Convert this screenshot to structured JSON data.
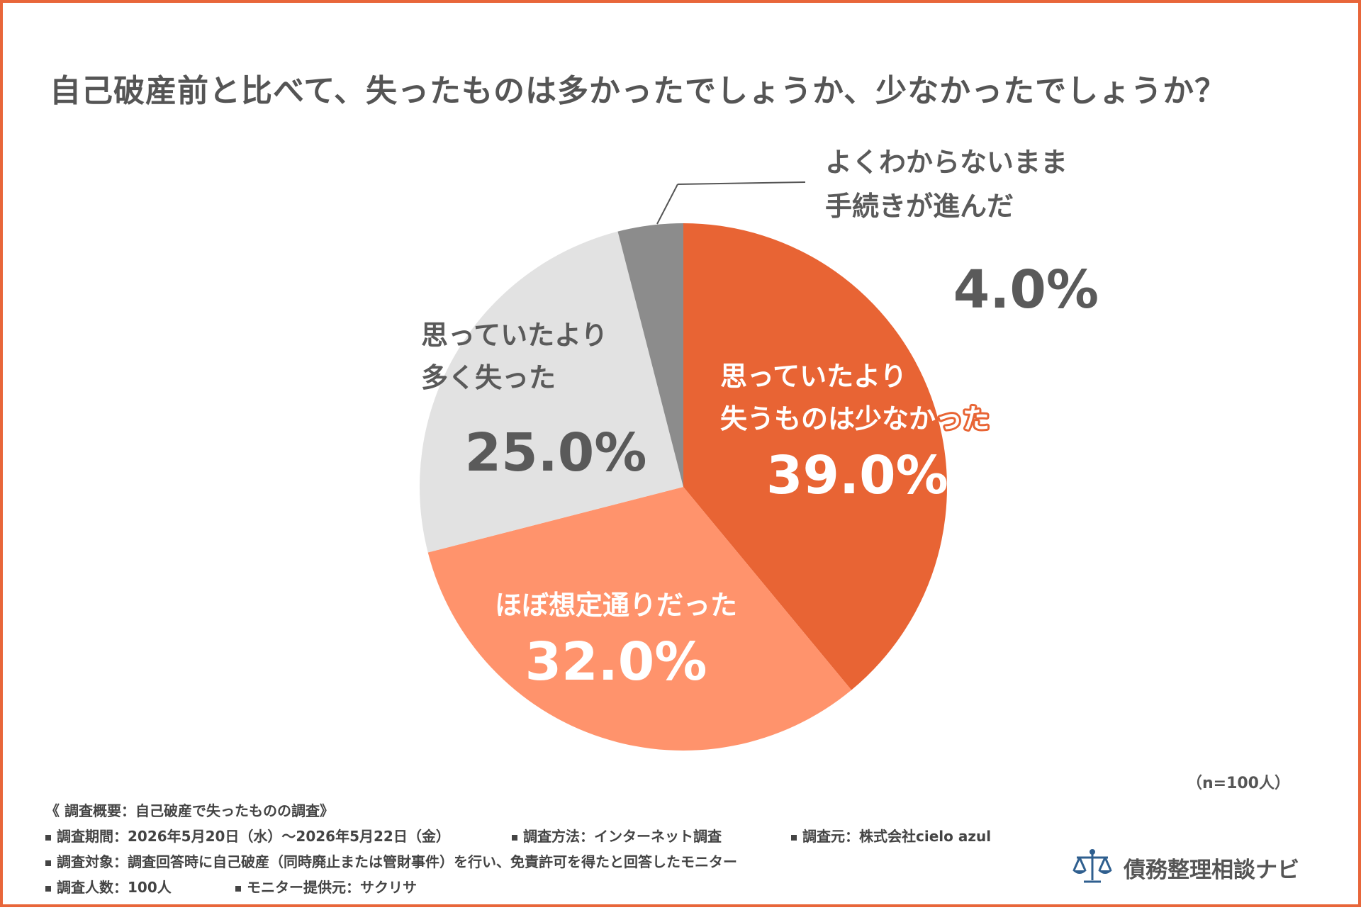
{
  "chart_data": {
    "type": "pie",
    "title": "自己破産前と比べて、失ったものは多かったでしょうか、少なかったでしょうか？",
    "slices": [
      {
        "label_lines": [
          "思っていたより",
          "失うものは少なかった"
        ],
        "value": 39.0,
        "value_label": "39.0%",
        "color": "#e86434",
        "text_color": "#ffffff"
      },
      {
        "label_lines": [
          "ほぼ想定通りだった"
        ],
        "value": 32.0,
        "value_label": "32.0%",
        "color": "#ff936c",
        "text_color": "#ffffff"
      },
      {
        "label_lines": [
          "思っていたより",
          "多く失った"
        ],
        "value": 25.0,
        "value_label": "25.0%",
        "color": "#e2e2e2",
        "text_color": "#5a5a5a"
      },
      {
        "label_lines": [
          "よくわからないまま",
          "手続きが進んだ"
        ],
        "value": 4.0,
        "value_label": "4.0%",
        "color": "#8c8c8c",
        "text_color": "#5a5a5a"
      }
    ],
    "start_angle": "12 o'clock",
    "direction": "clockwise"
  },
  "sample_size": "（n=100人）",
  "survey": {
    "heading": "《 調査概要：自己破産で失ったものの調査》",
    "period": "調査期間：2026年5月20日（水）～2026年5月22日（金）",
    "method": "調査方法：インターネット調査",
    "source": "調査元：株式会社cielo azul",
    "target": "調査対象：調査回答時に自己破産（同時廃止または管財事件）を行い、免責許可を得たと回答したモニター",
    "count": "調査人数：100人",
    "provider": "モニター提供元：サクリサ"
  },
  "logo": {
    "name": "債務整理相談ナビ",
    "icon": "scales-of-justice-icon",
    "icon_color": "#2f5f8f"
  },
  "colors": {
    "border": "#e8663a",
    "text": "#555555"
  }
}
